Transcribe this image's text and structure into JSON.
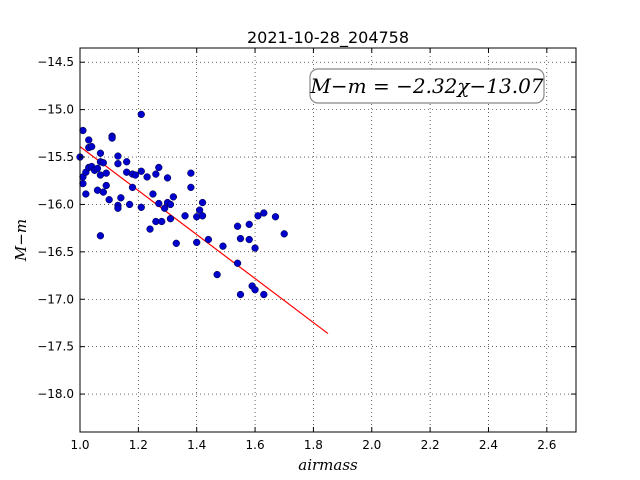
{
  "chart_data": {
    "type": "scatter",
    "title": "2021-10-28_204758",
    "xlabel": "airmass",
    "ylabel": "M−m",
    "xlim": [
      1.0,
      2.7
    ],
    "ylim": [
      -18.4,
      -14.35
    ],
    "y_inverted": true,
    "x_ticks": [
      "1.0",
      "1.2",
      "1.4",
      "1.6",
      "1.8",
      "2.0",
      "2.2",
      "2.4",
      "2.6"
    ],
    "y_ticks": [
      "−14.5",
      "−15.0",
      "−15.5",
      "−16.0",
      "−16.5",
      "−17.0",
      "−17.5",
      "−18.0"
    ],
    "grid": true,
    "annotation": "M−m = −2.32χ−13.07",
    "fit": {
      "slope": -2.32,
      "intercept": -13.07,
      "x_range": [
        1.0,
        1.85
      ],
      "color": "#ff0000"
    },
    "point_color": "#0000cc",
    "points": [
      [
        1.0,
        -15.5
      ],
      [
        1.01,
        -15.71
      ],
      [
        1.01,
        -15.78
      ],
      [
        1.01,
        -15.22
      ],
      [
        1.02,
        -15.66
      ],
      [
        1.02,
        -15.89
      ],
      [
        1.03,
        -15.4
      ],
      [
        1.03,
        -15.32
      ],
      [
        1.03,
        -15.61
      ],
      [
        1.04,
        -15.39
      ],
      [
        1.04,
        -15.6
      ],
      [
        1.05,
        -15.64
      ],
      [
        1.06,
        -15.85
      ],
      [
        1.06,
        -15.62
      ],
      [
        1.07,
        -15.46
      ],
      [
        1.07,
        -15.69
      ],
      [
        1.07,
        -16.33
      ],
      [
        1.07,
        -15.55
      ],
      [
        1.08,
        -15.56
      ],
      [
        1.08,
        -15.87
      ],
      [
        1.09,
        -15.67
      ],
      [
        1.09,
        -15.8
      ],
      [
        1.1,
        -15.95
      ],
      [
        1.11,
        -15.28
      ],
      [
        1.11,
        -15.3
      ],
      [
        1.13,
        -15.57
      ],
      [
        1.13,
        -15.49
      ],
      [
        1.13,
        -16.01
      ],
      [
        1.13,
        -16.04
      ],
      [
        1.14,
        -15.93
      ],
      [
        1.16,
        -15.55
      ],
      [
        1.16,
        -15.66
      ],
      [
        1.17,
        -16.0
      ],
      [
        1.18,
        -15.68
      ],
      [
        1.18,
        -15.82
      ],
      [
        1.19,
        -15.69
      ],
      [
        1.21,
        -15.65
      ],
      [
        1.21,
        -15.05
      ],
      [
        1.21,
        -16.03
      ],
      [
        1.23,
        -15.71
      ],
      [
        1.24,
        -16.26
      ],
      [
        1.25,
        -15.89
      ],
      [
        1.26,
        -15.68
      ],
      [
        1.26,
        -16.18
      ],
      [
        1.27,
        -15.99
      ],
      [
        1.27,
        -15.61
      ],
      [
        1.28,
        -16.18
      ],
      [
        1.29,
        -16.04
      ],
      [
        1.3,
        -15.72
      ],
      [
        1.3,
        -15.98
      ],
      [
        1.31,
        -16.15
      ],
      [
        1.31,
        -16.0
      ],
      [
        1.32,
        -15.92
      ],
      [
        1.33,
        -16.41
      ],
      [
        1.36,
        -16.12
      ],
      [
        1.38,
        -15.67
      ],
      [
        1.38,
        -15.82
      ],
      [
        1.4,
        -16.13
      ],
      [
        1.4,
        -16.4
      ],
      [
        1.41,
        -16.06
      ],
      [
        1.42,
        -16.12
      ],
      [
        1.42,
        -15.98
      ],
      [
        1.44,
        -16.37
      ],
      [
        1.47,
        -16.74
      ],
      [
        1.49,
        -16.44
      ],
      [
        1.54,
        -16.23
      ],
      [
        1.54,
        -16.62
      ],
      [
        1.55,
        -16.95
      ],
      [
        1.55,
        -16.36
      ],
      [
        1.58,
        -16.21
      ],
      [
        1.58,
        -16.37
      ],
      [
        1.59,
        -16.86
      ],
      [
        1.6,
        -16.46
      ],
      [
        1.6,
        -16.9
      ],
      [
        1.61,
        -16.12
      ],
      [
        1.63,
        -16.09
      ],
      [
        1.63,
        -16.95
      ],
      [
        1.67,
        -16.13
      ],
      [
        1.7,
        -16.31
      ]
    ]
  }
}
